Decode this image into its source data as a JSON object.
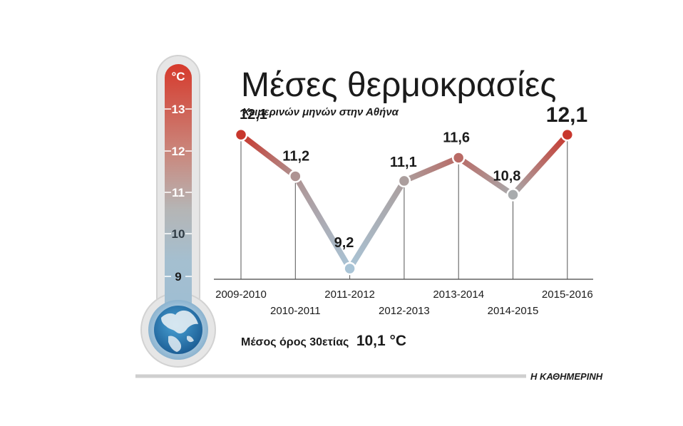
{
  "chart_data": {
    "type": "line",
    "title": "Μέσες θερμοκρασίες",
    "subtitle": "Χειμερινών μηνών στην Αθήνα",
    "categories": [
      "2009-2010",
      "2010-2011",
      "2011-2012",
      "2012-2013",
      "2013-2014",
      "2014-2015",
      "2015-2016"
    ],
    "values": [
      12.1,
      11.2,
      9.2,
      11.1,
      11.6,
      10.8,
      12.1
    ],
    "value_labels": [
      "12,1",
      "11,2",
      "9,2",
      "11,1",
      "11,6",
      "10,8",
      "12,1"
    ],
    "ylim": [
      8.5,
      13.5
    ],
    "grid": false,
    "unit": "°C",
    "thermometer_ticks": [
      "13",
      "12",
      "11",
      "10",
      "9"
    ],
    "note_text": "Μέσος όρος 30ετίας",
    "note_value": "10,1 °C",
    "colors": {
      "warm": "#c8372d",
      "neutral": "#a8a8a8",
      "cool": "#a9c4d6"
    }
  },
  "credit": "Η ΚΑΘΗΜΕΡΙΝΗ"
}
